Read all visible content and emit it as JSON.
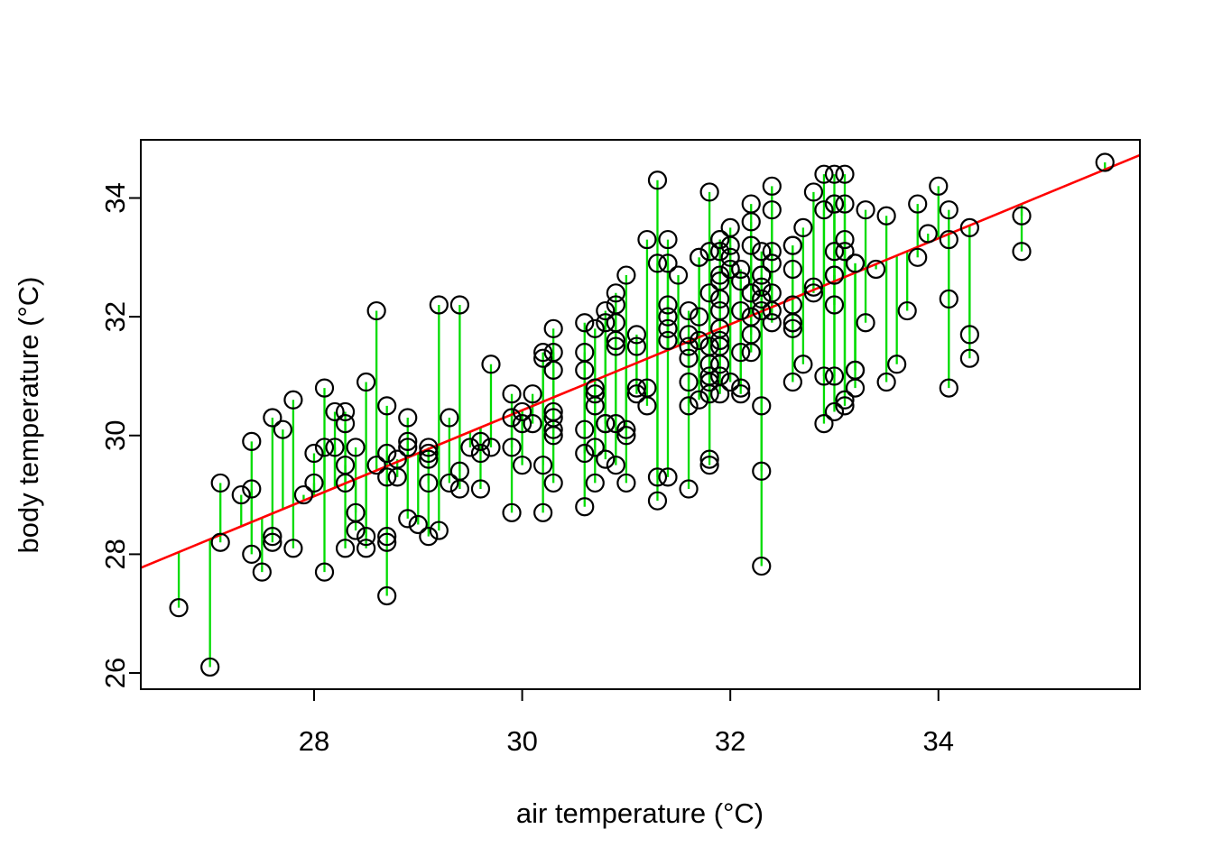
{
  "chart_data": {
    "type": "scatter",
    "title": "",
    "xlabel": "air temperature (°C)",
    "ylabel": "body temperature (°C)",
    "xlim": [
      26.335,
      35.936
    ],
    "ylim": [
      25.727,
      34.98
    ],
    "xticks": [
      28,
      30,
      32,
      34
    ],
    "yticks": [
      26,
      28,
      30,
      32,
      34
    ],
    "grid": false,
    "legend": "none",
    "marker": "open-circle",
    "colors": {
      "points": "#000000",
      "residual_lines": "#00DC00",
      "regression_line": "#FF0000",
      "axis": "#000000",
      "background": "#FFFFFF"
    },
    "regression": {
      "intercept": 8.705,
      "slope": 0.724
    },
    "residuals_drawn_to_line": true,
    "points": [
      [
        26.7,
        27.1
      ],
      [
        27.0,
        26.1
      ],
      [
        27.1,
        29.2
      ],
      [
        27.1,
        28.2
      ],
      [
        27.3,
        29.0
      ],
      [
        27.4,
        29.1
      ],
      [
        27.4,
        29.9
      ],
      [
        27.4,
        28.0
      ],
      [
        27.5,
        27.7
      ],
      [
        27.6,
        30.3
      ],
      [
        27.6,
        28.3
      ],
      [
        27.6,
        28.2
      ],
      [
        27.7,
        30.1
      ],
      [
        27.8,
        28.1
      ],
      [
        27.8,
        30.6
      ],
      [
        27.9,
        29.0
      ],
      [
        28.0,
        29.2
      ],
      [
        28.0,
        29.7
      ],
      [
        28.1,
        27.7
      ],
      [
        28.1,
        29.8
      ],
      [
        28.1,
        30.8
      ],
      [
        28.2,
        29.8
      ],
      [
        28.2,
        30.4
      ],
      [
        28.3,
        30.4
      ],
      [
        28.3,
        30.2
      ],
      [
        28.3,
        29.5
      ],
      [
        28.3,
        29.2
      ],
      [
        28.3,
        28.1
      ],
      [
        28.4,
        29.8
      ],
      [
        28.4,
        28.7
      ],
      [
        28.4,
        28.4
      ],
      [
        28.5,
        28.3
      ],
      [
        28.5,
        28.1
      ],
      [
        28.5,
        30.9
      ],
      [
        28.6,
        29.5
      ],
      [
        28.6,
        32.1
      ],
      [
        28.7,
        29.7
      ],
      [
        28.7,
        29.3
      ],
      [
        28.7,
        28.3
      ],
      [
        28.7,
        28.2
      ],
      [
        28.7,
        27.3
      ],
      [
        28.7,
        30.5
      ],
      [
        28.8,
        29.6
      ],
      [
        28.8,
        29.3
      ],
      [
        28.9,
        30.3
      ],
      [
        28.9,
        29.9
      ],
      [
        28.9,
        29.8
      ],
      [
        28.9,
        28.6
      ],
      [
        29.0,
        28.5
      ],
      [
        29.1,
        29.8
      ],
      [
        29.1,
        29.7
      ],
      [
        29.1,
        29.6
      ],
      [
        29.1,
        29.2
      ],
      [
        29.1,
        28.3
      ],
      [
        29.2,
        28.4
      ],
      [
        29.2,
        32.2
      ],
      [
        29.3,
        30.3
      ],
      [
        29.3,
        29.2
      ],
      [
        29.4,
        29.4
      ],
      [
        29.4,
        29.1
      ],
      [
        29.4,
        32.2
      ],
      [
        29.5,
        29.8
      ],
      [
        29.6,
        29.9
      ],
      [
        29.6,
        29.7
      ],
      [
        29.6,
        29.1
      ],
      [
        29.7,
        29.8
      ],
      [
        29.7,
        31.2
      ],
      [
        29.9,
        30.7
      ],
      [
        29.9,
        30.3
      ],
      [
        29.9,
        29.8
      ],
      [
        29.9,
        28.7
      ],
      [
        30.0,
        29.5
      ],
      [
        30.0,
        30.4
      ],
      [
        30.0,
        30.2
      ],
      [
        30.1,
        30.7
      ],
      [
        30.1,
        30.2
      ],
      [
        30.2,
        29.5
      ],
      [
        30.2,
        28.7
      ],
      [
        30.2,
        31.3
      ],
      [
        30.2,
        31.4
      ],
      [
        30.3,
        31.8
      ],
      [
        30.3,
        31.4
      ],
      [
        30.3,
        31.1
      ],
      [
        30.3,
        30.4
      ],
      [
        30.3,
        30.3
      ],
      [
        30.3,
        30.1
      ],
      [
        30.3,
        30.0
      ],
      [
        30.3,
        29.2
      ],
      [
        30.6,
        31.9
      ],
      [
        30.6,
        31.4
      ],
      [
        30.6,
        31.1
      ],
      [
        30.6,
        30.1
      ],
      [
        30.6,
        29.7
      ],
      [
        30.6,
        28.8
      ],
      [
        30.7,
        31.8
      ],
      [
        30.7,
        30.8
      ],
      [
        30.7,
        30.7
      ],
      [
        30.7,
        30.5
      ],
      [
        30.7,
        29.8
      ],
      [
        30.7,
        29.2
      ],
      [
        30.8,
        32.1
      ],
      [
        30.8,
        31.9
      ],
      [
        30.8,
        30.2
      ],
      [
        30.8,
        30.2
      ],
      [
        30.8,
        29.6
      ],
      [
        30.9,
        32.4
      ],
      [
        30.9,
        32.2
      ],
      [
        30.9,
        31.9
      ],
      [
        30.9,
        31.6
      ],
      [
        30.9,
        31.5
      ],
      [
        30.9,
        30.2
      ],
      [
        30.9,
        29.5
      ],
      [
        31.0,
        32.7
      ],
      [
        31.0,
        30.1
      ],
      [
        31.0,
        30.0
      ],
      [
        31.0,
        29.2
      ],
      [
        31.1,
        31.7
      ],
      [
        31.1,
        31.5
      ],
      [
        31.1,
        30.8
      ],
      [
        31.1,
        30.7
      ],
      [
        31.2,
        30.8
      ],
      [
        31.2,
        30.5
      ],
      [
        31.2,
        33.3
      ],
      [
        31.3,
        34.3
      ],
      [
        31.3,
        32.9
      ],
      [
        31.3,
        29.3
      ],
      [
        31.3,
        28.9
      ],
      [
        31.4,
        33.3
      ],
      [
        31.4,
        32.9
      ],
      [
        31.4,
        32.2
      ],
      [
        31.4,
        32.0
      ],
      [
        31.4,
        31.8
      ],
      [
        31.4,
        31.6
      ],
      [
        31.4,
        29.3
      ],
      [
        31.5,
        32.7
      ],
      [
        31.6,
        32.1
      ],
      [
        31.6,
        31.7
      ],
      [
        31.6,
        31.5
      ],
      [
        31.6,
        31.3
      ],
      [
        31.6,
        30.9
      ],
      [
        31.6,
        30.5
      ],
      [
        31.6,
        29.1
      ],
      [
        31.7,
        33.0
      ],
      [
        31.7,
        33.0
      ],
      [
        31.7,
        32.0
      ],
      [
        31.7,
        31.6
      ],
      [
        31.7,
        30.6
      ],
      [
        31.8,
        34.1
      ],
      [
        31.8,
        33.1
      ],
      [
        31.8,
        32.4
      ],
      [
        31.8,
        31.5
      ],
      [
        31.8,
        31.2
      ],
      [
        31.8,
        31.0
      ],
      [
        31.8,
        30.9
      ],
      [
        31.8,
        30.7
      ],
      [
        31.8,
        29.6
      ],
      [
        31.8,
        29.5
      ],
      [
        31.9,
        33.3
      ],
      [
        31.9,
        33.3
      ],
      [
        31.9,
        33.1
      ],
      [
        31.9,
        32.7
      ],
      [
        31.9,
        32.6
      ],
      [
        31.9,
        32.3
      ],
      [
        31.9,
        32.1
      ],
      [
        31.9,
        31.8
      ],
      [
        31.9,
        31.6
      ],
      [
        31.9,
        31.5
      ],
      [
        31.9,
        31.2
      ],
      [
        31.9,
        31.0
      ],
      [
        31.9,
        30.7
      ],
      [
        32.0,
        33.5
      ],
      [
        32.0,
        33.2
      ],
      [
        32.0,
        33.0
      ],
      [
        32.0,
        32.8
      ],
      [
        32.0,
        30.9
      ],
      [
        32.1,
        32.8
      ],
      [
        32.1,
        32.6
      ],
      [
        32.1,
        32.1
      ],
      [
        32.1,
        31.4
      ],
      [
        32.1,
        30.8
      ],
      [
        32.1,
        30.7
      ],
      [
        32.2,
        33.9
      ],
      [
        32.2,
        33.6
      ],
      [
        32.2,
        33.2
      ],
      [
        32.2,
        32.4
      ],
      [
        32.2,
        32.4
      ],
      [
        32.2,
        32.0
      ],
      [
        32.2,
        31.7
      ],
      [
        32.2,
        31.4
      ],
      [
        32.3,
        33.1
      ],
      [
        32.3,
        32.7
      ],
      [
        32.3,
        32.7
      ],
      [
        32.3,
        32.5
      ],
      [
        32.3,
        32.3
      ],
      [
        32.3,
        32.1
      ],
      [
        32.3,
        30.5
      ],
      [
        32.3,
        29.4
      ],
      [
        32.3,
        27.8
      ],
      [
        32.4,
        34.2
      ],
      [
        32.4,
        33.8
      ],
      [
        32.4,
        33.1
      ],
      [
        32.4,
        32.9
      ],
      [
        32.4,
        32.4
      ],
      [
        32.4,
        32.1
      ],
      [
        32.4,
        31.9
      ],
      [
        32.6,
        33.2
      ],
      [
        32.6,
        33.2
      ],
      [
        32.6,
        32.8
      ],
      [
        32.6,
        32.2
      ],
      [
        32.6,
        31.9
      ],
      [
        32.6,
        31.9
      ],
      [
        32.6,
        31.8
      ],
      [
        32.6,
        30.9
      ],
      [
        32.7,
        33.5
      ],
      [
        32.7,
        31.2
      ],
      [
        32.8,
        34.1
      ],
      [
        32.8,
        32.5
      ],
      [
        32.8,
        32.4
      ],
      [
        32.9,
        34.4
      ],
      [
        32.9,
        33.8
      ],
      [
        32.9,
        31.0
      ],
      [
        32.9,
        30.2
      ],
      [
        33.0,
        34.4
      ],
      [
        33.0,
        33.9
      ],
      [
        33.0,
        33.9
      ],
      [
        33.0,
        33.1
      ],
      [
        33.0,
        32.7
      ],
      [
        33.0,
        32.7
      ],
      [
        33.0,
        32.2
      ],
      [
        33.0,
        31.0
      ],
      [
        33.0,
        30.4
      ],
      [
        33.1,
        34.4
      ],
      [
        33.1,
        33.9
      ],
      [
        33.1,
        33.3
      ],
      [
        33.1,
        33.1
      ],
      [
        33.1,
        30.6
      ],
      [
        33.1,
        30.5
      ],
      [
        33.2,
        32.9
      ],
      [
        33.2,
        32.9
      ],
      [
        33.2,
        31.1
      ],
      [
        33.2,
        31.1
      ],
      [
        33.2,
        30.8
      ],
      [
        33.3,
        33.8
      ],
      [
        33.3,
        31.9
      ],
      [
        33.4,
        32.8
      ],
      [
        33.5,
        33.7
      ],
      [
        33.5,
        30.9
      ],
      [
        33.6,
        31.2
      ],
      [
        33.7,
        32.1
      ],
      [
        33.8,
        33.9
      ],
      [
        33.8,
        33.0
      ],
      [
        33.9,
        33.4
      ],
      [
        34.0,
        34.2
      ],
      [
        34.1,
        33.8
      ],
      [
        34.1,
        33.3
      ],
      [
        34.1,
        32.3
      ],
      [
        34.1,
        30.8
      ],
      [
        34.3,
        33.5
      ],
      [
        34.3,
        31.7
      ],
      [
        34.3,
        31.3
      ],
      [
        34.8,
        33.7
      ],
      [
        34.8,
        33.1
      ],
      [
        35.6,
        34.6
      ]
    ]
  }
}
